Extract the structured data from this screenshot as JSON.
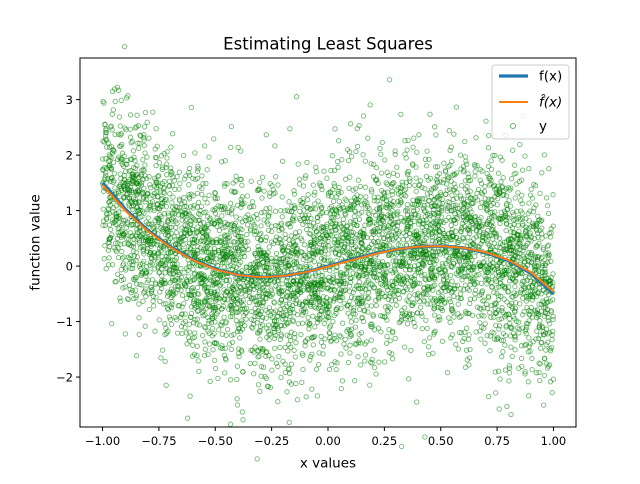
{
  "chart_data": {
    "type": "scatter",
    "title": "Estimating Least Squares",
    "xlabel": "x values",
    "ylabel": "function value",
    "xlim": [
      -1.1,
      1.1
    ],
    "ylim": [
      -2.9,
      3.75
    ],
    "xticks": [
      -1.0,
      -0.75,
      -0.5,
      -0.25,
      0.0,
      0.25,
      0.5,
      0.75,
      1.0
    ],
    "xtick_labels": [
      "−1.00",
      "−0.75",
      "−0.50",
      "−0.25",
      "0.00",
      "0.25",
      "0.50",
      "0.75",
      "1.00"
    ],
    "yticks": [
      -2,
      -1,
      0,
      1,
      2,
      3
    ],
    "ytick_labels": [
      "−2",
      "−1",
      "0",
      "1",
      "2",
      "3"
    ],
    "grid": false,
    "legend_position": "top-right",
    "legend": [
      "f(x)",
      "f̂(x)",
      "y"
    ],
    "colors": {
      "f": "#1f77b4",
      "fhat": "#ff7f0e",
      "y": "#008000"
    },
    "series": [
      {
        "name": "f(x)",
        "kind": "line",
        "x": [
          -1.0,
          -0.9,
          -0.8,
          -0.7,
          -0.6,
          -0.5,
          -0.4,
          -0.3,
          -0.2,
          -0.1,
          0.0,
          0.1,
          0.2,
          0.3,
          0.4,
          0.5,
          0.6,
          0.7,
          0.8,
          0.9,
          1.0
        ],
        "y": [
          1.5,
          1.03,
          0.65,
          0.35,
          0.12,
          -0.05,
          -0.16,
          -0.2,
          -0.18,
          -0.11,
          0.0,
          0.11,
          0.22,
          0.3,
          0.35,
          0.36,
          0.33,
          0.24,
          0.1,
          -0.13,
          -0.5
        ]
      },
      {
        "name": "f̂(x)",
        "kind": "line",
        "x": [
          -1.0,
          -0.9,
          -0.8,
          -0.7,
          -0.6,
          -0.5,
          -0.4,
          -0.3,
          -0.2,
          -0.1,
          0.0,
          0.1,
          0.2,
          0.3,
          0.4,
          0.5,
          0.6,
          0.7,
          0.8,
          0.9,
          1.0
        ],
        "y": [
          1.46,
          1.0,
          0.63,
          0.34,
          0.11,
          -0.06,
          -0.16,
          -0.2,
          -0.18,
          -0.11,
          -0.01,
          0.1,
          0.21,
          0.3,
          0.35,
          0.36,
          0.33,
          0.25,
          0.11,
          -0.11,
          -0.46
        ]
      },
      {
        "name": "y",
        "kind": "scatter",
        "n_points": 5000,
        "noise_sd": 0.85,
        "x_range": [
          -1.0,
          1.0
        ],
        "marker": "hollow circle"
      }
    ]
  }
}
